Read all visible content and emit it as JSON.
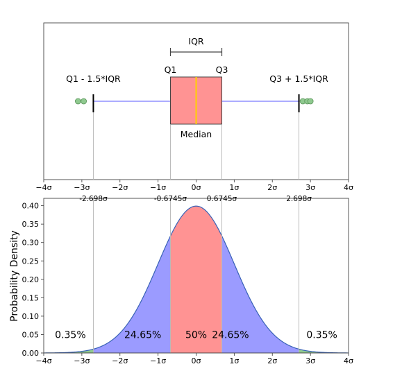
{
  "chart_data": [
    {
      "type": "box",
      "x": [
        -3.1,
        -2.95,
        2.8,
        2.92,
        3.0
      ],
      "box": {
        "q1": -0.6745,
        "median": 0,
        "q3": 0.6745,
        "whisker_low": -2.698,
        "whisker_high": 2.698,
        "outliers": [
          -3.1,
          -2.95,
          2.8,
          2.92,
          3.0
        ]
      },
      "xlim": [
        -4,
        4
      ],
      "xtick_values": [
        -4,
        -3,
        -2,
        -1,
        0,
        1,
        2,
        3,
        4
      ],
      "xtick_labels": [
        "−4σ",
        "−3σ",
        "−2σ",
        "−1σ",
        "0σ",
        "1σ",
        "2σ",
        "3σ",
        "4σ"
      ],
      "annotations": {
        "iqr": "IQR",
        "q1": "Q1",
        "q3": "Q3",
        "median": "Median",
        "lower_fence": "Q1 - 1.5*IQR",
        "upper_fence": "Q3 + 1.5*IQR"
      },
      "colors": {
        "box": "#ff9393",
        "median": "#ffd000",
        "whisker": "#7b7bff",
        "outlier": "#8fc98f"
      }
    },
    {
      "type": "area",
      "x_function": "normal pdf",
      "mean": 0,
      "sd": 1,
      "xlim": [
        -4,
        4
      ],
      "ylim": [
        0,
        0.42
      ],
      "ylabel": "Probability Density",
      "xtick_values": [
        -4,
        -3,
        -2,
        -1,
        0,
        1,
        2,
        3,
        4
      ],
      "xtick_labels": [
        "−4σ",
        "−3σ",
        "−2σ",
        "−1σ",
        "0σ",
        "1σ",
        "2σ",
        "3σ",
        "4σ"
      ],
      "ytick_values": [
        0,
        0.05,
        0.1,
        0.15,
        0.2,
        0.25,
        0.3,
        0.35,
        0.4
      ],
      "ytick_labels": [
        "0.00",
        "0.05",
        "0.10",
        "0.15",
        "0.20",
        "0.25",
        "0.30",
        "0.35",
        "0.40"
      ],
      "boundaries": [
        -2.698,
        -0.6745,
        0.6745,
        2.698
      ],
      "boundary_labels": [
        "-2.698σ",
        "-0.6745σ",
        "0.6745σ",
        "2.698σ"
      ],
      "regions": [
        {
          "from": -4,
          "to": -2.698,
          "color": "#90c990",
          "label": "0.35%",
          "label_x": -3.3
        },
        {
          "from": -2.698,
          "to": -0.6745,
          "color": "#9b9bff",
          "label": "24.65%",
          "label_x": -1.4
        },
        {
          "from": -0.6745,
          "to": 0.6745,
          "color": "#ff9393",
          "label": "50%",
          "label_x": 0
        },
        {
          "from": 0.6745,
          "to": 2.698,
          "color": "#9b9bff",
          "label": "24.65%",
          "label_x": 0.9
        },
        {
          "from": 2.698,
          "to": 4,
          "color": "#90c990",
          "label": "0.35%",
          "label_x": 3.3
        }
      ],
      "label_y": 0.05,
      "curve_color": "#3a63b8"
    }
  ]
}
